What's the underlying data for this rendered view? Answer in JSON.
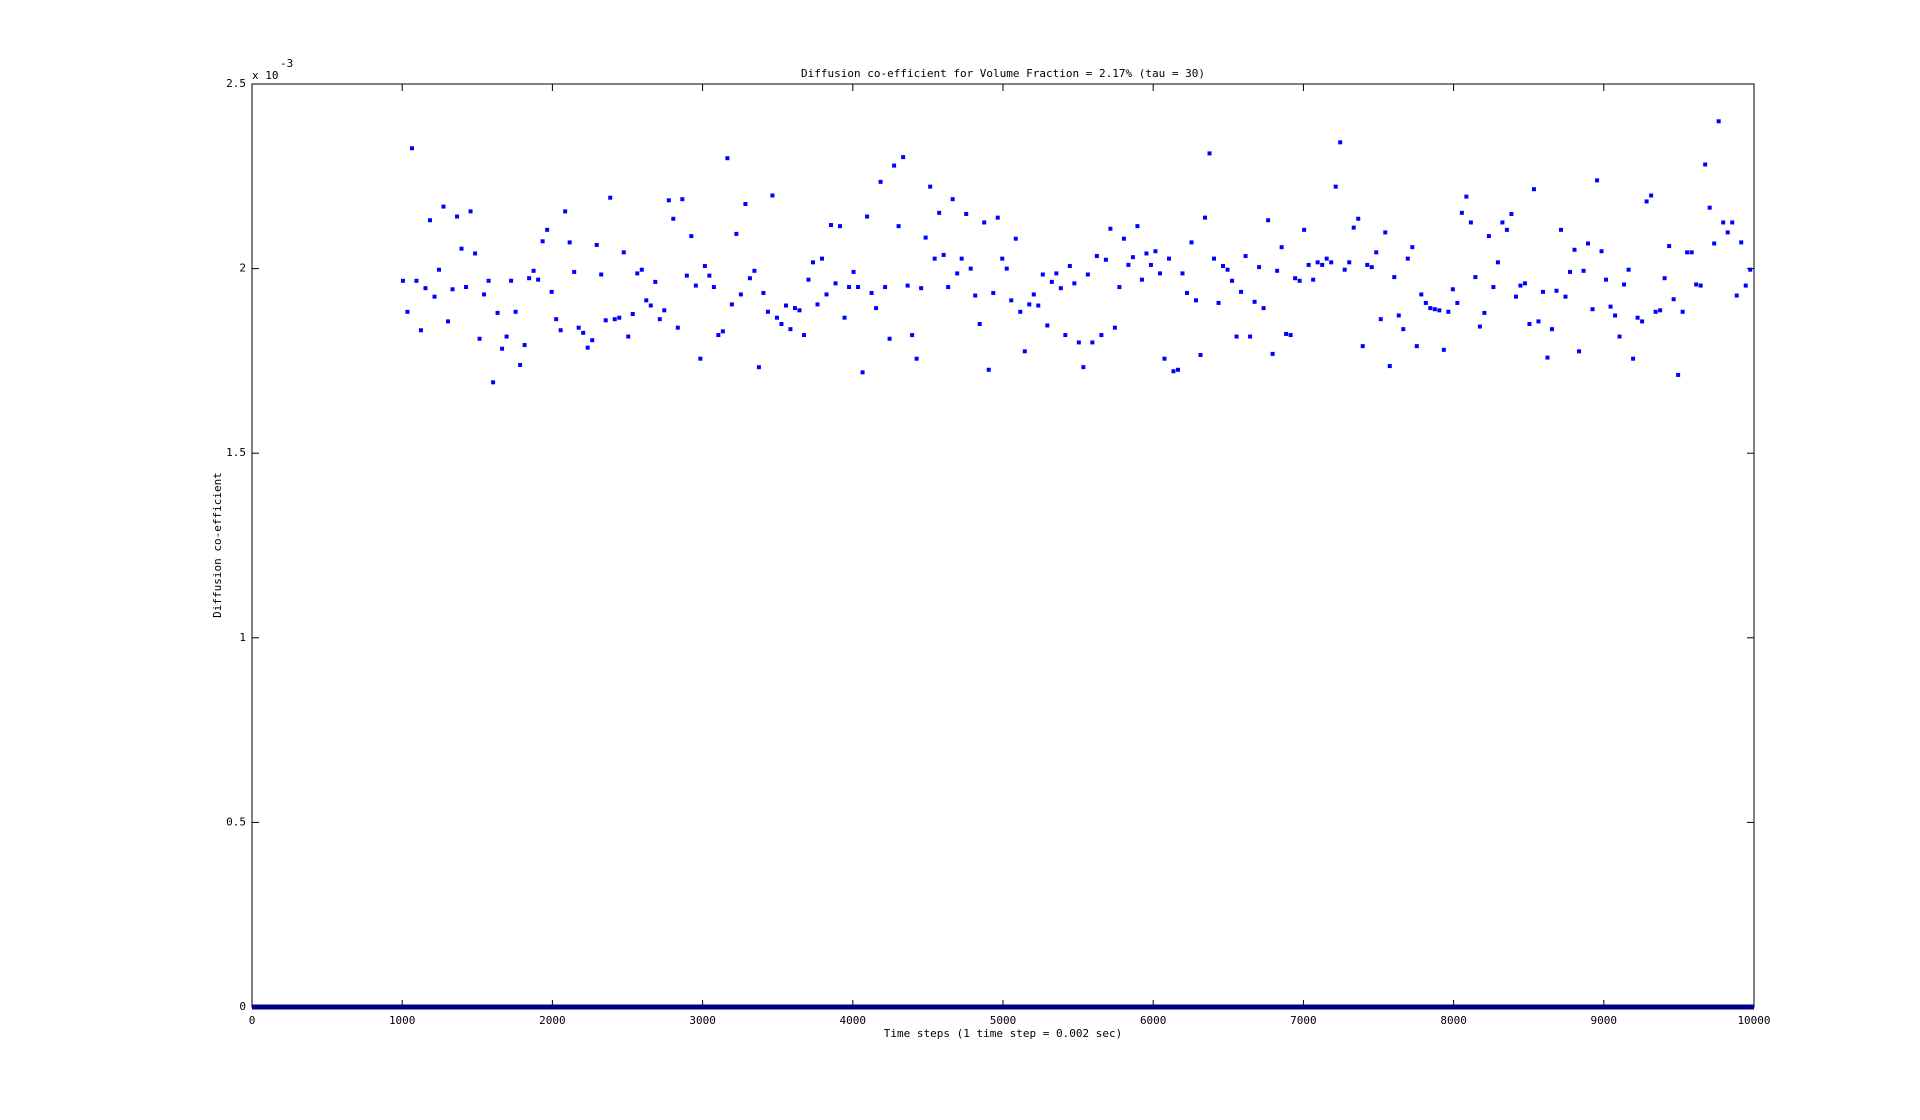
{
  "chart_data": {
    "type": "scatter",
    "title": "Diffusion co-efficient for Volume Fraction = 2.17% (tau = 30)",
    "x_label": "Time steps (1 time step = 0.002 sec)",
    "y_label": "Diffusion co-efficient",
    "y_multiplier": {
      "base": "x 10",
      "exponent": "-3"
    },
    "xlim": [
      0,
      10000
    ],
    "xticks": [
      0,
      1000,
      2000,
      3000,
      4000,
      5000,
      6000,
      7000,
      8000,
      9000,
      10000
    ],
    "ylim": [
      0,
      2.5
    ],
    "yticks": [
      0,
      0.5,
      1,
      1.5,
      2,
      2.5
    ],
    "grid": false,
    "series": [
      {
        "color": "#0000ff",
        "style": "dot",
        "x": [
          1005,
          1035,
          1065,
          1095,
          1125,
          1155,
          1185,
          1215,
          1245,
          1275,
          1305,
          1335,
          1365,
          1395,
          1425,
          1455,
          1485,
          1515,
          1545,
          1575,
          1605,
          1635,
          1665,
          1695,
          1725,
          1755,
          1785,
          1815,
          1845,
          1875,
          1905,
          1935,
          1965,
          1995,
          2025,
          2055,
          2085,
          2115,
          2145,
          2175,
          2205,
          2235,
          2265,
          2295,
          2325,
          2355,
          2385,
          2415,
          2445,
          2475,
          2505,
          2535,
          2565,
          2595,
          2625,
          2655,
          2685,
          2715,
          2745,
          2775,
          2805,
          2835,
          2865,
          2895,
          2925,
          2955,
          2985,
          3015,
          3045,
          3075,
          3105,
          3135,
          3165,
          3195,
          3225,
          3255,
          3285,
          3315,
          3345,
          3375,
          3405,
          3435,
          3465,
          3495,
          3525,
          3555,
          3585,
          3615,
          3645,
          3675,
          3705,
          3735,
          3765,
          3795,
          3825,
          3855,
          3885,
          3915,
          3945,
          3975,
          4005,
          4035,
          4065,
          4095,
          4125,
          4155,
          4185,
          4215,
          4245,
          4275,
          4305,
          4335,
          4365,
          4395,
          4425,
          4455,
          4485,
          4515,
          4545,
          4575,
          4605,
          4635,
          4665,
          4695,
          4725,
          4755,
          4785,
          4815,
          4845,
          4875,
          4905,
          4935,
          4965,
          4995,
          5025,
          5055,
          5085,
          5115,
          5145,
          5175,
          5205,
          5235,
          5265,
          5295,
          5325,
          5355,
          5385,
          5415,
          5445,
          5475,
          5505,
          5535,
          5565,
          5595,
          5625,
          5655,
          5685,
          5715,
          5745,
          5775,
          5805,
          5835,
          5865,
          5895,
          5925,
          5955,
          5985,
          6015,
          6045,
          6075,
          6105,
          6135,
          6165,
          6195,
          6225,
          6255,
          6285,
          6315,
          6345,
          6375,
          6405,
          6435,
          6465,
          6495,
          6525,
          6555,
          6585,
          6615,
          6645,
          6675,
          6705,
          6735,
          6765,
          6795,
          6825,
          6855,
          6885,
          6915,
          6945,
          6975,
          7005,
          7035,
          7065,
          7095,
          7125,
          7155,
          7185,
          7215,
          7245,
          7275,
          7305,
          7335,
          7365,
          7395,
          7425,
          7455,
          7485,
          7515,
          7545,
          7575,
          7605,
          7635,
          7665,
          7695,
          7725,
          7755,
          7785,
          7815,
          7845,
          7875,
          7905,
          7935,
          7965,
          7995,
          8025,
          8055,
          8085,
          8115,
          8145,
          8175,
          8205,
          8235,
          8265,
          8295,
          8325,
          8355,
          8385,
          8415,
          8445,
          8475,
          8505,
          8535,
          8565,
          8595,
          8625,
          8655,
          8685,
          8715,
          8745,
          8775,
          8805,
          8835,
          8865,
          8895,
          8925,
          8955,
          8985,
          9015,
          9045,
          9075,
          9105,
          9135,
          9165,
          9195,
          9225,
          9255,
          9285,
          9315,
          9345,
          9375,
          9405,
          9435,
          9465,
          9495,
          9525,
          9555,
          9585,
          9615,
          9645,
          9675,
          9705,
          9735,
          9765,
          9795,
          9825,
          9855,
          9885,
          9915,
          9945,
          9975
        ],
        "values": [
          1.967,
          1.883,
          2.326,
          1.967,
          1.833,
          1.947,
          2.131,
          1.924,
          1.997,
          2.168,
          1.857,
          1.944,
          2.141,
          2.054,
          1.95,
          2.155,
          2.041,
          1.81,
          1.93,
          1.967,
          1.692,
          1.88,
          1.783,
          1.816,
          1.967,
          1.883,
          1.739,
          1.793,
          1.974,
          1.994,
          1.97,
          2.074,
          2.105,
          1.937,
          1.863,
          1.833,
          2.155,
          2.071,
          1.991,
          1.84,
          1.826,
          1.786,
          1.806,
          2.064,
          1.984,
          1.86,
          2.192,
          1.863,
          1.867,
          2.044,
          1.816,
          1.877,
          1.987,
          1.997,
          1.914,
          1.9,
          1.964,
          1.863,
          1.887,
          2.185,
          2.135,
          1.84,
          2.188,
          1.981,
          2.088,
          1.954,
          1.756,
          2.007,
          1.981,
          1.95,
          1.82,
          1.83,
          2.299,
          1.903,
          2.094,
          1.93,
          2.175,
          1.974,
          1.994,
          1.733,
          1.934,
          1.883,
          2.198,
          1.867,
          1.85,
          1.9,
          1.836,
          1.893,
          1.887,
          1.82,
          1.97,
          2.017,
          1.903,
          2.027,
          1.93,
          2.118,
          1.96,
          2.115,
          1.867,
          1.95,
          1.991,
          1.95,
          1.719,
          2.141,
          1.934,
          1.893,
          2.235,
          1.95,
          1.81,
          2.279,
          2.115,
          2.302,
          1.954,
          1.82,
          1.756,
          1.947,
          2.084,
          2.222,
          2.027,
          2.151,
          2.037,
          1.95,
          2.188,
          1.987,
          2.027,
          2.148,
          2.0,
          1.927,
          1.85,
          2.125,
          1.726,
          1.934,
          2.138,
          2.027,
          2.0,
          1.914,
          2.081,
          1.883,
          1.776,
          1.903,
          1.93,
          1.9,
          1.984,
          1.846,
          1.964,
          1.987,
          1.947,
          1.82,
          2.007,
          1.96,
          1.8,
          1.733,
          1.984,
          1.8,
          2.034,
          1.82,
          2.024,
          2.108,
          1.84,
          1.95,
          2.081,
          2.01,
          2.031,
          2.115,
          1.97,
          2.041,
          2.01,
          2.047,
          1.987,
          1.756,
          2.027,
          1.722,
          1.726,
          1.987,
          1.934,
          2.071,
          1.914,
          1.766,
          2.138,
          2.312,
          2.027,
          1.907,
          2.007,
          1.997,
          1.967,
          1.816,
          1.937,
          2.034,
          1.816,
          1.91,
          2.004,
          1.893,
          2.131,
          1.769,
          1.994,
          2.058,
          1.823,
          1.82,
          1.974,
          1.967,
          2.105,
          2.01,
          1.97,
          2.017,
          2.01,
          2.027,
          2.017,
          2.222,
          2.342,
          1.997,
          2.017,
          2.111,
          2.135,
          1.79,
          2.01,
          2.004,
          2.044,
          1.863,
          2.098,
          1.736,
          1.977,
          1.873,
          1.836,
          2.027,
          2.058,
          1.79,
          1.93,
          1.907,
          1.893,
          1.89,
          1.887,
          1.78,
          1.883,
          1.944,
          1.907,
          2.151,
          2.195,
          2.125,
          1.977,
          1.843,
          1.88,
          2.088,
          1.95,
          2.017,
          2.125,
          2.105,
          2.148,
          1.924,
          1.954,
          1.96,
          1.85,
          2.215,
          1.857,
          1.937,
          1.759,
          1.836,
          1.94,
          2.105,
          1.924,
          1.991,
          2.051,
          1.776,
          1.994,
          2.068,
          1.89,
          2.239,
          2.047,
          1.97,
          1.897,
          1.873,
          1.816,
          1.957,
          1.997,
          1.756,
          1.867,
          1.857,
          2.182,
          2.198,
          1.883,
          1.887,
          1.974,
          2.061,
          1.917,
          1.712,
          1.883,
          2.044,
          2.044,
          1.957,
          1.954,
          2.282,
          2.165,
          2.068,
          2.399,
          2.125,
          2.098,
          2.125,
          1.927,
          2.071,
          1.954,
          1.997
        ]
      },
      {
        "color": "#00008b",
        "style": "line",
        "x": [
          0,
          10000
        ],
        "values": [
          0,
          0
        ]
      }
    ]
  }
}
